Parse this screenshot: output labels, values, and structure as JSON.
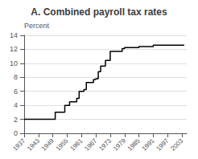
{
  "chart_data": {
    "type": "step",
    "title": "A. Combined payroll tax rates",
    "ylabel": "Percent",
    "x": [
      1937,
      1949,
      1950,
      1950,
      1951,
      1954,
      1955,
      1956,
      1957,
      1959,
      1960,
      1961,
      1962,
      1963,
      1964,
      1965,
      1966,
      1967,
      1968,
      1969,
      1970,
      1971,
      1972,
      1973,
      1974,
      1975,
      1976,
      1977,
      1978,
      1979,
      1980,
      1981,
      1982,
      1983,
      1984,
      1985,
      1986,
      1987,
      1988,
      1989,
      1990,
      1991,
      1992,
      2004
    ],
    "values": [
      2.0,
      2.0,
      3.0,
      3.0,
      3.0,
      4.0,
      4.0,
      4.5,
      4.5,
      5.0,
      6.0,
      6.0,
      6.25,
      7.25,
      7.25,
      7.25,
      7.7,
      7.8,
      8.8,
      9.6,
      9.6,
      10.4,
      10.4,
      11.7,
      11.7,
      11.7,
      11.7,
      11.7,
      12.1,
      12.26,
      12.26,
      12.26,
      12.26,
      12.26,
      12.26,
      12.4,
      12.4,
      12.4,
      12.4,
      12.4,
      12.4,
      12.6,
      12.6,
      12.6
    ],
    "color": "#000000",
    "xlim": [
      1937,
      2005
    ],
    "xticks": [
      1937,
      1943,
      1949,
      1955,
      1961,
      1967,
      1973,
      1979,
      1985,
      1991,
      1997,
      2003
    ],
    "ylim": [
      0,
      14
    ],
    "yticks": [
      0,
      2,
      4,
      6,
      8,
      10,
      12,
      14
    ],
    "grid": true
  }
}
